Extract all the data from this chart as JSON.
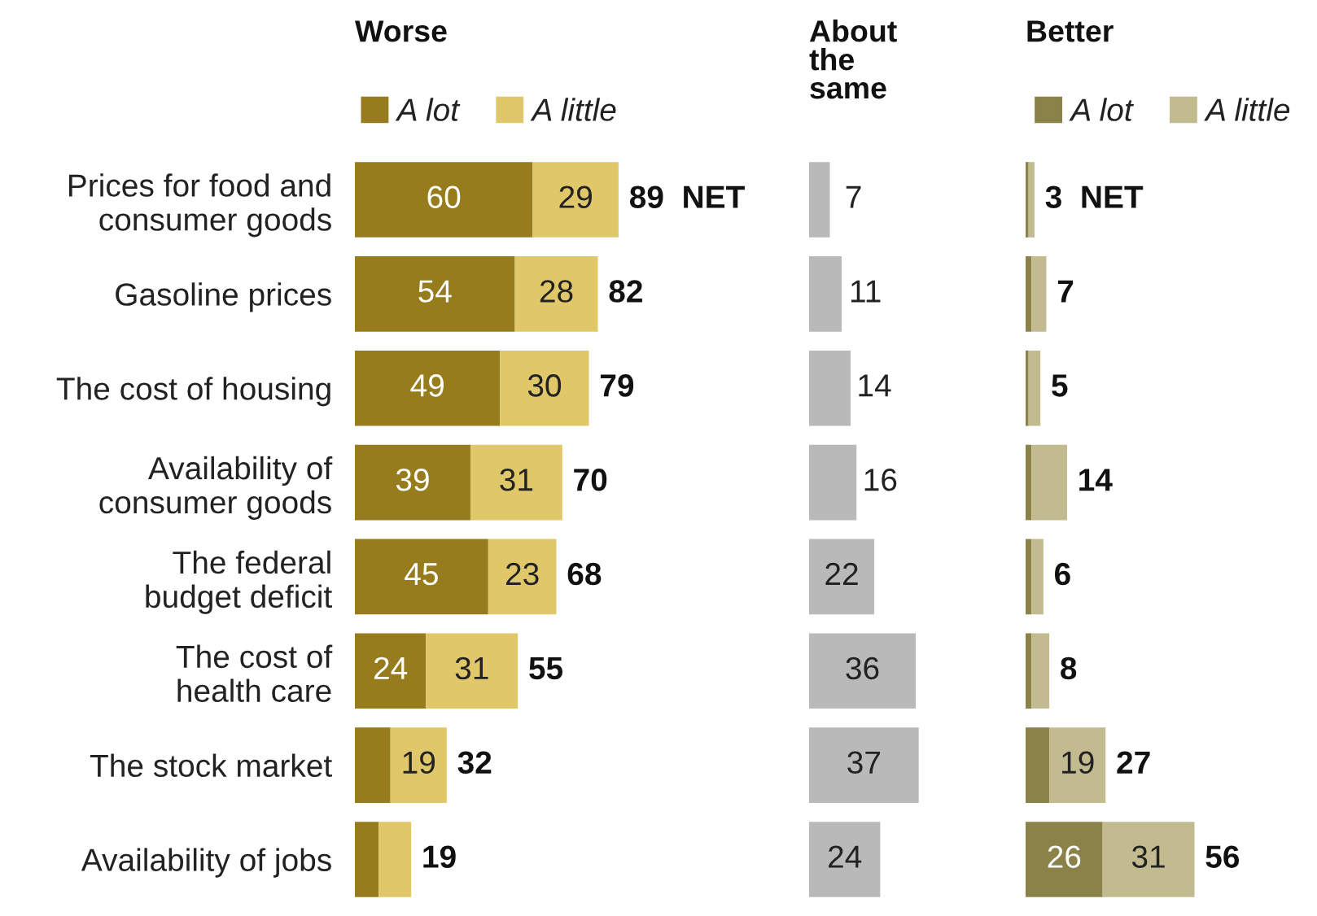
{
  "chart_data": [
    {
      "type": "bar",
      "orientation": "horizontal",
      "stacked": true,
      "title": "Worse",
      "legend": "top",
      "categories": [
        "Prices for food and\nconsumer goods",
        "Gasoline prices",
        "The cost of housing",
        "Availability of\nconsumer goods",
        "The federal\nbudget deficit",
        "The cost of\nhealth care",
        "The stock market",
        "Availability of jobs"
      ],
      "tick_labels": "y",
      "series": [
        {
          "name": "A lot",
          "color": "#977c1e",
          "values": [
            60,
            54,
            49,
            39,
            45,
            24,
            12,
            8
          ],
          "value_labels": [
            "60",
            "54",
            "49",
            "39",
            "45",
            "24",
            null,
            null
          ]
        },
        {
          "name": "A little",
          "color": "#e0c86a",
          "values": [
            29,
            28,
            30,
            31,
            23,
            31,
            19,
            11
          ],
          "value_labels": [
            "29",
            "28",
            "30",
            "31",
            "23",
            "31",
            "19",
            null
          ]
        }
      ],
      "totals": [
        "89  NET",
        "82",
        "79",
        "70",
        "68",
        "55",
        "32",
        "19"
      ]
    },
    {
      "type": "bar",
      "orientation": "horizontal",
      "title": "About\nthe\nsame",
      "categories": [
        null,
        null,
        null,
        null,
        null,
        null,
        null,
        null
      ],
      "tick_labels": false,
      "data_labels": true,
      "series": [
        {
          "color": "#b9b9b9",
          "values": [
            7,
            11,
            14,
            16,
            22,
            36,
            37,
            24
          ]
        }
      ]
    },
    {
      "type": "bar",
      "orientation": "horizontal",
      "stacked": true,
      "title": "Better",
      "legend": "top",
      "categories": [
        null,
        null,
        null,
        null,
        null,
        null,
        null,
        null
      ],
      "tick_labels": false,
      "series": [
        {
          "name": "A lot",
          "color": "#8a8248",
          "values": [
            1,
            2,
            1,
            2,
            2,
            2,
            8,
            26
          ],
          "value_labels": [
            null,
            null,
            null,
            null,
            null,
            null,
            null,
            "26"
          ]
        },
        {
          "name": "A little",
          "color": "#c2bb8f",
          "values": [
            2,
            5,
            4,
            12,
            4,
            6,
            19,
            31
          ],
          "value_labels": [
            null,
            null,
            null,
            null,
            null,
            null,
            "19",
            "31"
          ]
        }
      ],
      "totals": [
        "3  NET",
        "7",
        "5",
        "14",
        "6",
        "8",
        "27",
        "56"
      ]
    }
  ]
}
